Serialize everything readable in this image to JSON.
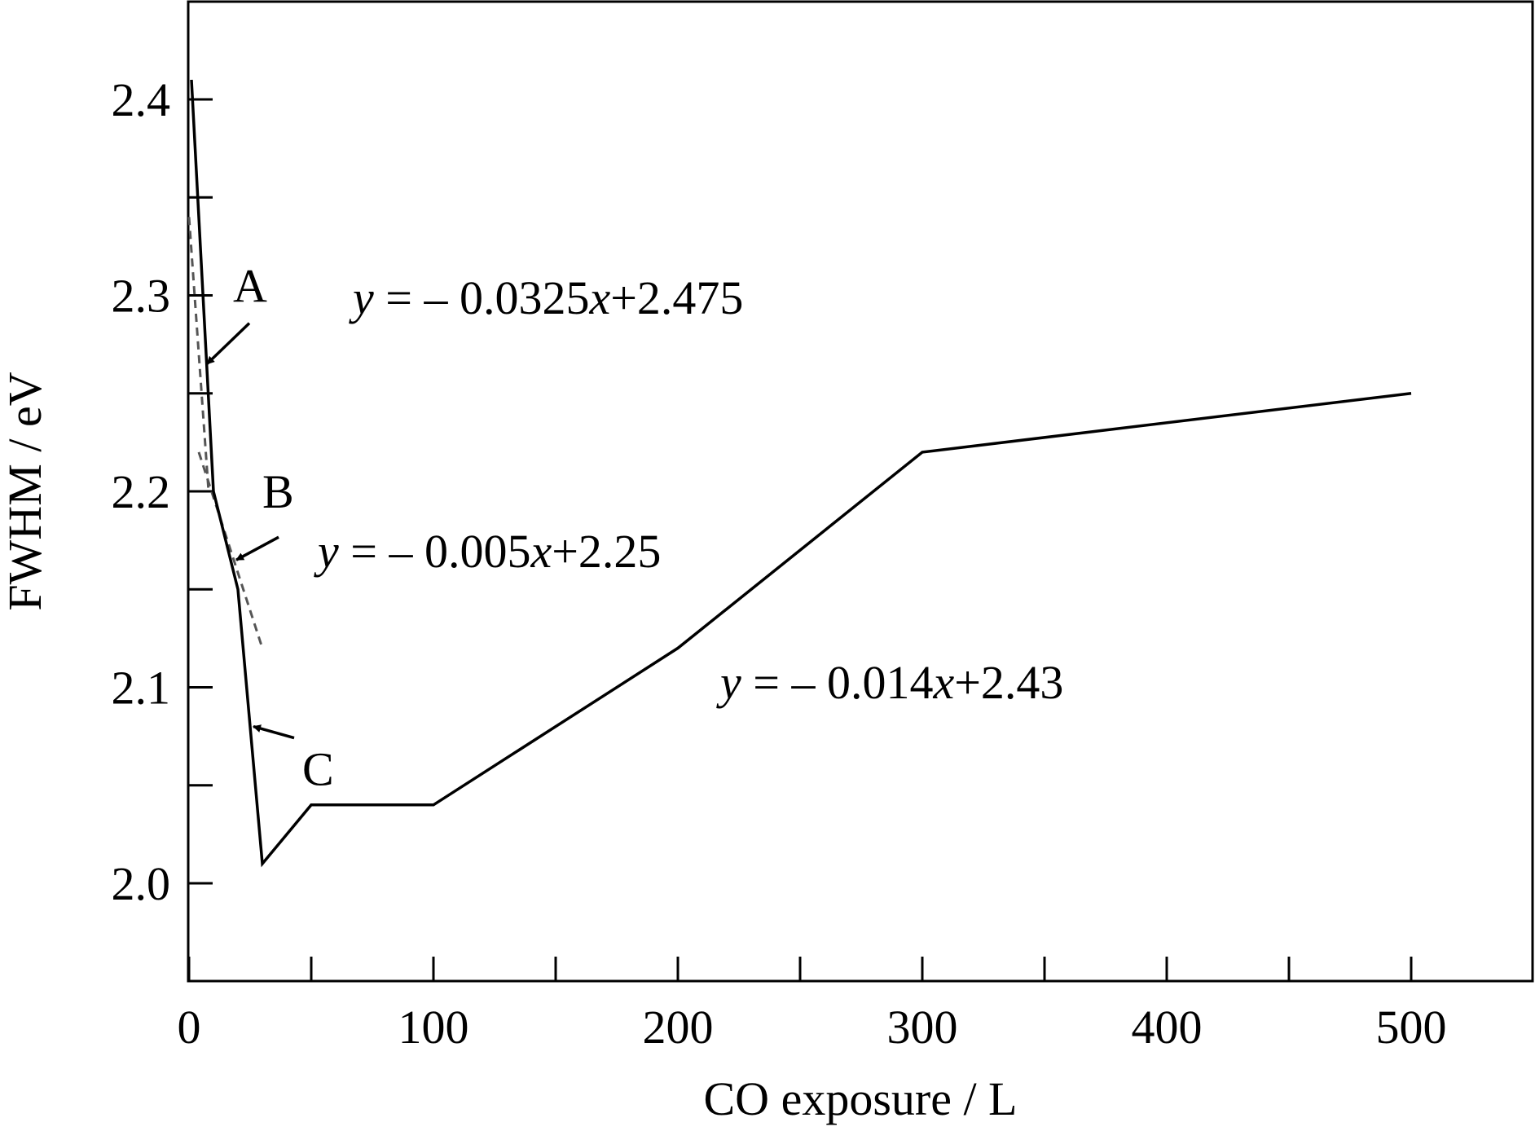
{
  "chart_data": {
    "type": "line",
    "xlabel": "CO exposure / L",
    "ylabel": "FWHM / eV",
    "xlim": [
      0,
      550
    ],
    "ylim": [
      1.95,
      2.45
    ],
    "xticks": [
      0,
      100,
      200,
      300,
      400,
      500
    ],
    "xtick_labels": [
      "0",
      "100",
      "200",
      "300",
      "400",
      "500"
    ],
    "xminor": [
      50,
      150,
      250,
      350,
      450
    ],
    "yticks": [
      2.0,
      2.1,
      2.2,
      2.3,
      2.4
    ],
    "ytick_labels": [
      "2.0",
      "2.1",
      "2.2",
      "2.3",
      "2.4"
    ],
    "yminor": [
      2.05,
      2.15,
      2.25,
      2.35
    ],
    "grid": false,
    "series": [
      {
        "style": "solid",
        "x": [
          1,
          10,
          20,
          30,
          50,
          100,
          200,
          300,
          500
        ],
        "y": [
          2.41,
          2.2,
          2.15,
          2.01,
          2.04,
          2.04,
          2.12,
          2.22,
          2.25
        ]
      }
    ],
    "fit_lines": [
      {
        "style": "dashed",
        "x": [
          0,
          8
        ],
        "y": [
          2.34,
          2.2
        ]
      },
      {
        "style": "dashed",
        "x": [
          4,
          30
        ],
        "y": [
          2.22,
          2.12
        ]
      }
    ],
    "annotations": [
      {
        "label": "A",
        "x": 6,
        "y": 2.265
      },
      {
        "label": "B",
        "x": 18,
        "y": 2.165
      },
      {
        "label": "C",
        "x": 25,
        "y": 2.08
      }
    ],
    "equations": [
      {
        "y_var": "y",
        "rest1": " = – 0.0325",
        "x_var": "x",
        "rest2": "+2.475"
      },
      {
        "y_var": "y",
        "rest1": " = – 0.005",
        "x_var": "x",
        "rest2": "+2.25"
      },
      {
        "y_var": "y",
        "rest1": " = – 0.014",
        "x_var": "x",
        "rest2": "+2.43"
      }
    ]
  }
}
